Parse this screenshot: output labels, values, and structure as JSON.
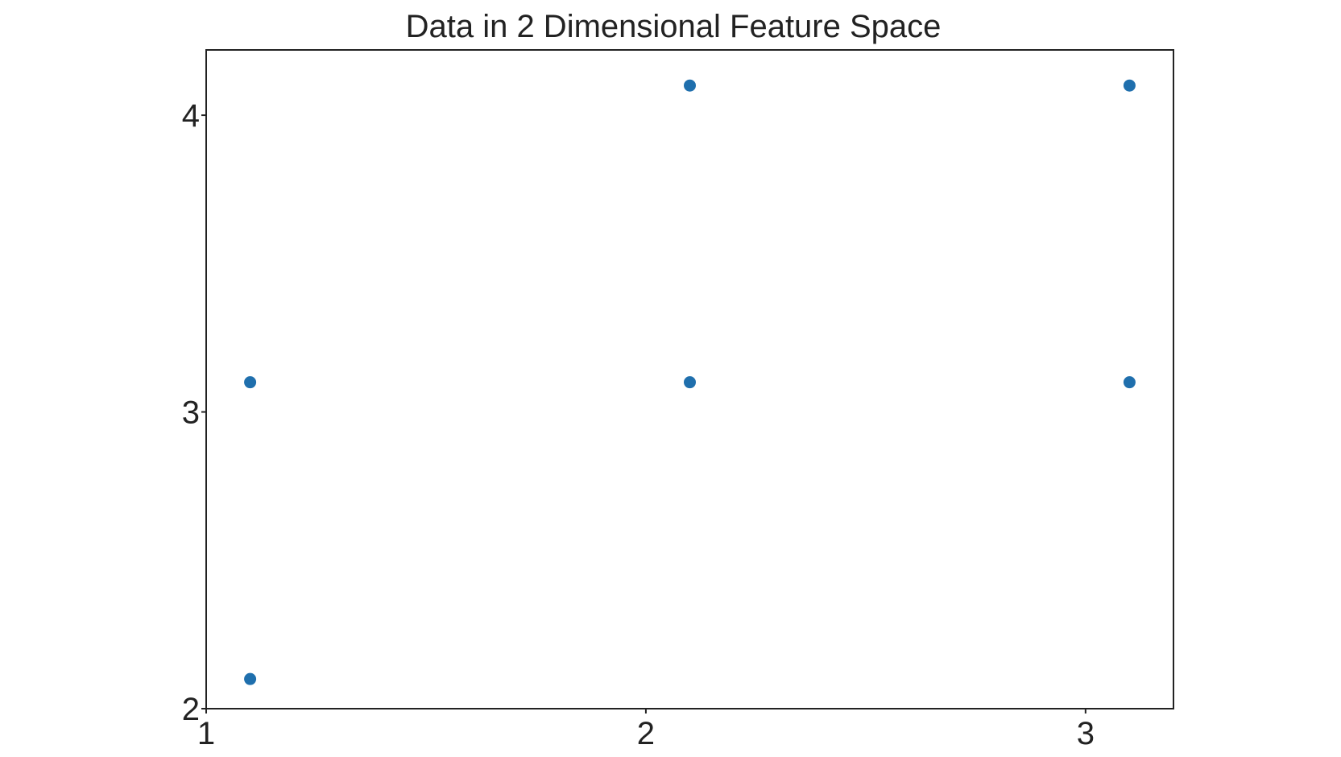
{
  "chart_data": {
    "type": "scatter",
    "title": "Data in 2 Dimensional Feature Space",
    "xlabel": "",
    "ylabel": "",
    "xlim": [
      1,
      3.2
    ],
    "ylim": [
      2,
      4.22
    ],
    "x_ticks": [
      1,
      2,
      3
    ],
    "x_tick_labels": [
      "1",
      "2",
      "3"
    ],
    "y_ticks": [
      2,
      3,
      4
    ],
    "y_tick_labels": [
      "2",
      "3",
      "4"
    ],
    "grid": false,
    "legend": "none",
    "marker_color": "#1f6fad",
    "series": [
      {
        "points": [
          {
            "x": 1.1,
            "y": 2.1
          },
          {
            "x": 1.1,
            "y": 3.1
          },
          {
            "x": 2.1,
            "y": 3.1
          },
          {
            "x": 2.1,
            "y": 4.1
          },
          {
            "x": 3.1,
            "y": 3.1
          },
          {
            "x": 3.1,
            "y": 4.1
          }
        ]
      }
    ]
  }
}
